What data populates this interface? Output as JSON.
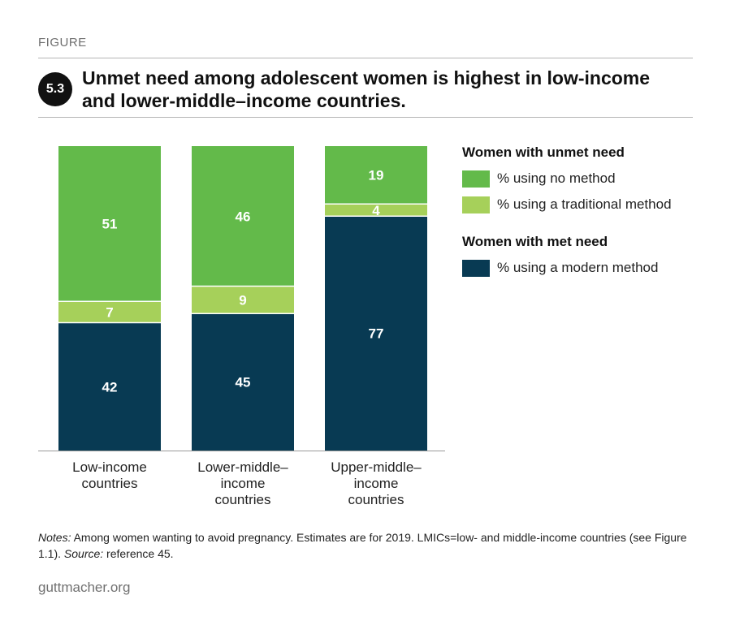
{
  "header": {
    "kicker": "FIGURE",
    "figure_number": "5.3",
    "title": "Unmet need among adolescent women is highest in low-income and lower-middle–income countries."
  },
  "legend": {
    "unmet_group_label": "Women with unmet need",
    "met_group_label": "Women with met need"
  },
  "chart_data": {
    "type": "bar",
    "stacked": true,
    "categories": [
      "Low-income\ncountries",
      "Lower-middle–\nincome\ncountries",
      "Upper-middle–\nincome\ncountries"
    ],
    "series": [
      {
        "name": "% using a modern method",
        "values": [
          42,
          45,
          77
        ],
        "color": "#083a53",
        "group": "met"
      },
      {
        "name": "% using a traditional method",
        "values": [
          7,
          9,
          4
        ],
        "color": "#a6d05a",
        "group": "unmet"
      },
      {
        "name": "% using no method",
        "values": [
          51,
          46,
          19
        ],
        "color": "#63ba4a",
        "group": "unmet"
      }
    ],
    "ylim": [
      0,
      100
    ],
    "grid": false,
    "data_labels": true,
    "legend_position": "right"
  },
  "notes": {
    "notes_label": "Notes:",
    "notes_text": " Among women wanting to avoid pregnancy. Estimates are for 2019. LMICs=low- and middle-income countries (see Figure 1.1). ",
    "source_label": "Source:",
    "source_text": " reference 45."
  },
  "footer": {
    "site": "guttmacher.org"
  }
}
